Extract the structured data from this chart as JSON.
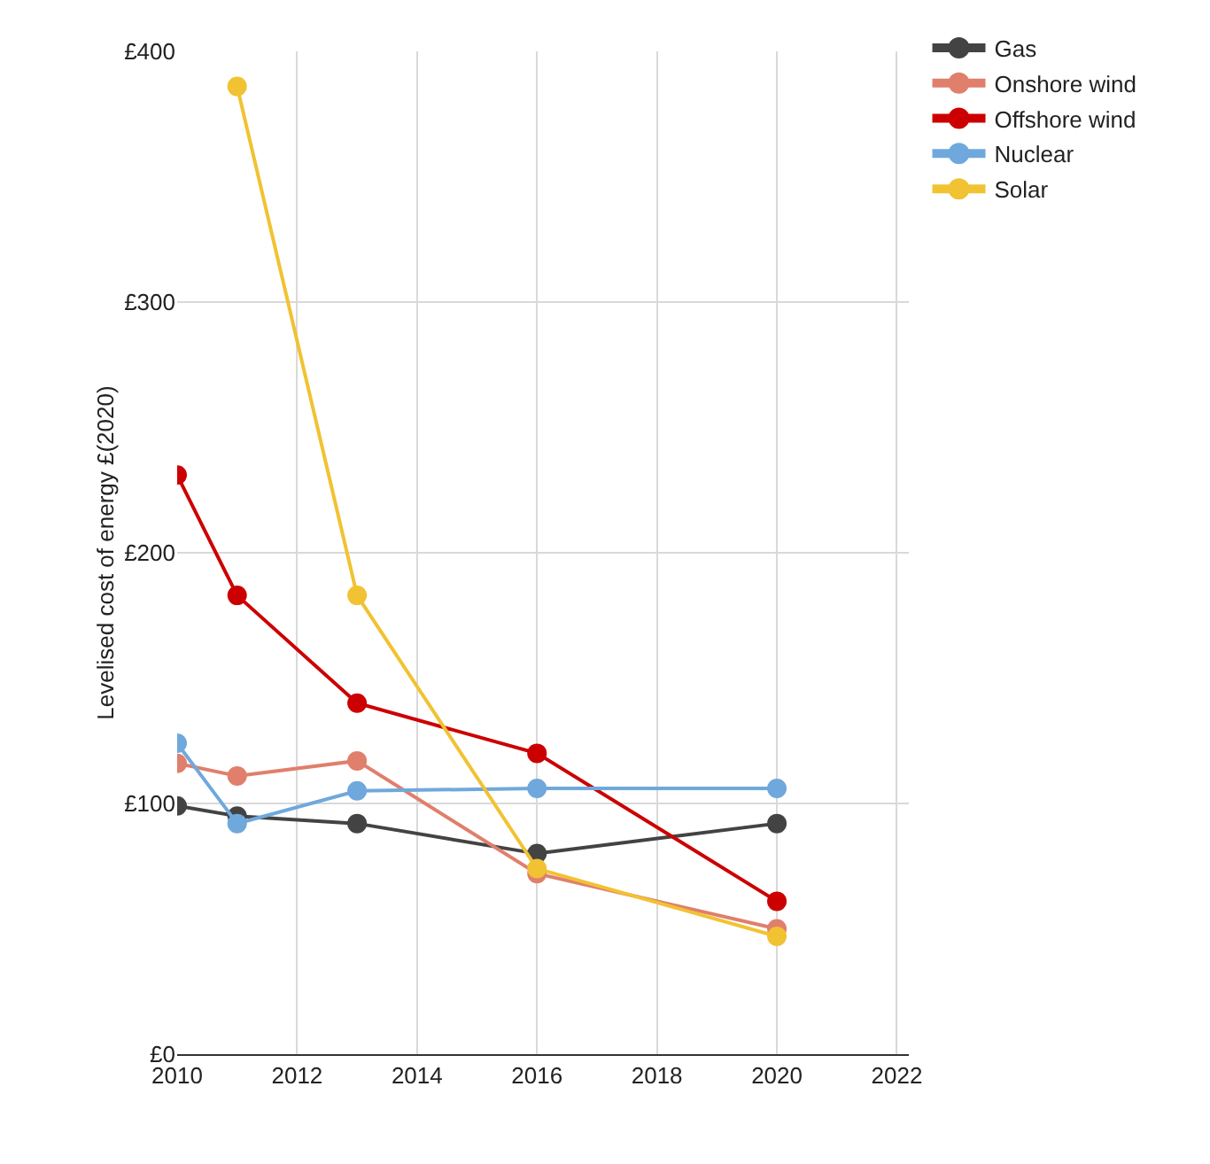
{
  "chart_data": {
    "type": "line",
    "ylabel": "Levelised cost of energy £(2020)",
    "x": [
      2010,
      2011,
      2013,
      2016,
      2020
    ],
    "series": [
      {
        "name": "Gas",
        "color": "#434343",
        "values": [
          99,
          95,
          92,
          80,
          92
        ]
      },
      {
        "name": "Onshore wind",
        "color": "#e07f6c",
        "values": [
          116,
          111,
          117,
          72,
          50
        ]
      },
      {
        "name": "Offshore wind",
        "color": "#cc0000",
        "values": [
          231,
          183,
          140,
          120,
          61
        ]
      },
      {
        "name": "Nuclear",
        "color": "#6fa8dc",
        "values": [
          124,
          92,
          105,
          106,
          106
        ]
      },
      {
        "name": "Solar",
        "color": "#f1c232",
        "values": [
          null,
          386,
          183,
          74,
          47
        ]
      }
    ],
    "xlim": [
      2010,
      2022.2
    ],
    "xticks": [
      2010,
      2012,
      2014,
      2016,
      2018,
      2020,
      2022
    ],
    "ylim": [
      0,
      400
    ],
    "yticks": [
      {
        "value": 0,
        "label": "£0"
      },
      {
        "value": 100,
        "label": "£100"
      },
      {
        "value": 200,
        "label": "£200"
      },
      {
        "value": 300,
        "label": "£300"
      },
      {
        "value": 400,
        "label": "£400"
      }
    ],
    "grid": true,
    "legend": "top right",
    "marker": "circle",
    "line_style": "solid"
  }
}
